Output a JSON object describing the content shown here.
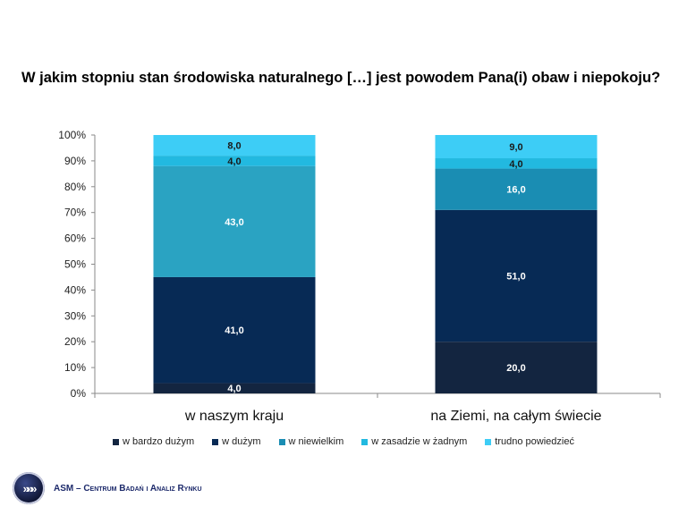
{
  "chart_data": {
    "type": "bar",
    "stacked": true,
    "title": "W jakim stopniu stan środowiska naturalnego […] jest powodem Pana(i) obaw i niepokoju?",
    "categories": [
      "w naszym kraju",
      "na Ziemi, na całym świecie"
    ],
    "series": [
      {
        "name": "w bardzo dużym",
        "values": [
          4.0,
          20.0
        ],
        "color": "#132540",
        "label_color": "#ffffff"
      },
      {
        "name": "w dużym",
        "values": [
          41.0,
          51.0
        ],
        "color": "#072a55",
        "label_color": "#ffffff"
      },
      {
        "name": "w niewielkim",
        "values": [
          43.0,
          16.0
        ],
        "color_by_category": [
          "#2aa3c2",
          "#1a8db3"
        ],
        "label_color": "#ffffff"
      },
      {
        "name": "w zasadzie w żadnym",
        "values": [
          4.0,
          4.0
        ],
        "color": "#22b9e0",
        "label_color": "#1a1a1a"
      },
      {
        "name": "trudno powiedzieć",
        "values": [
          8.0,
          9.0
        ],
        "color": "#3dcdf6",
        "label_color": "#1a1a1a"
      }
    ],
    "data_labels": [
      [
        "4,0",
        "41,0",
        "43,0",
        "4,0",
        "8,0"
      ],
      [
        "20,0",
        "51,0",
        "16,0",
        "4,0",
        "9,0"
      ]
    ],
    "y_ticks": [
      "0%",
      "10%",
      "20%",
      "30%",
      "40%",
      "50%",
      "60%",
      "70%",
      "80%",
      "90%",
      "100%"
    ],
    "ylim": [
      0,
      100
    ],
    "grid": false,
    "legend_position": "bottom"
  },
  "footer": {
    "logo_glyph": "»»»",
    "org": "ASM – Centrum Badań i Analiz Rynku"
  }
}
